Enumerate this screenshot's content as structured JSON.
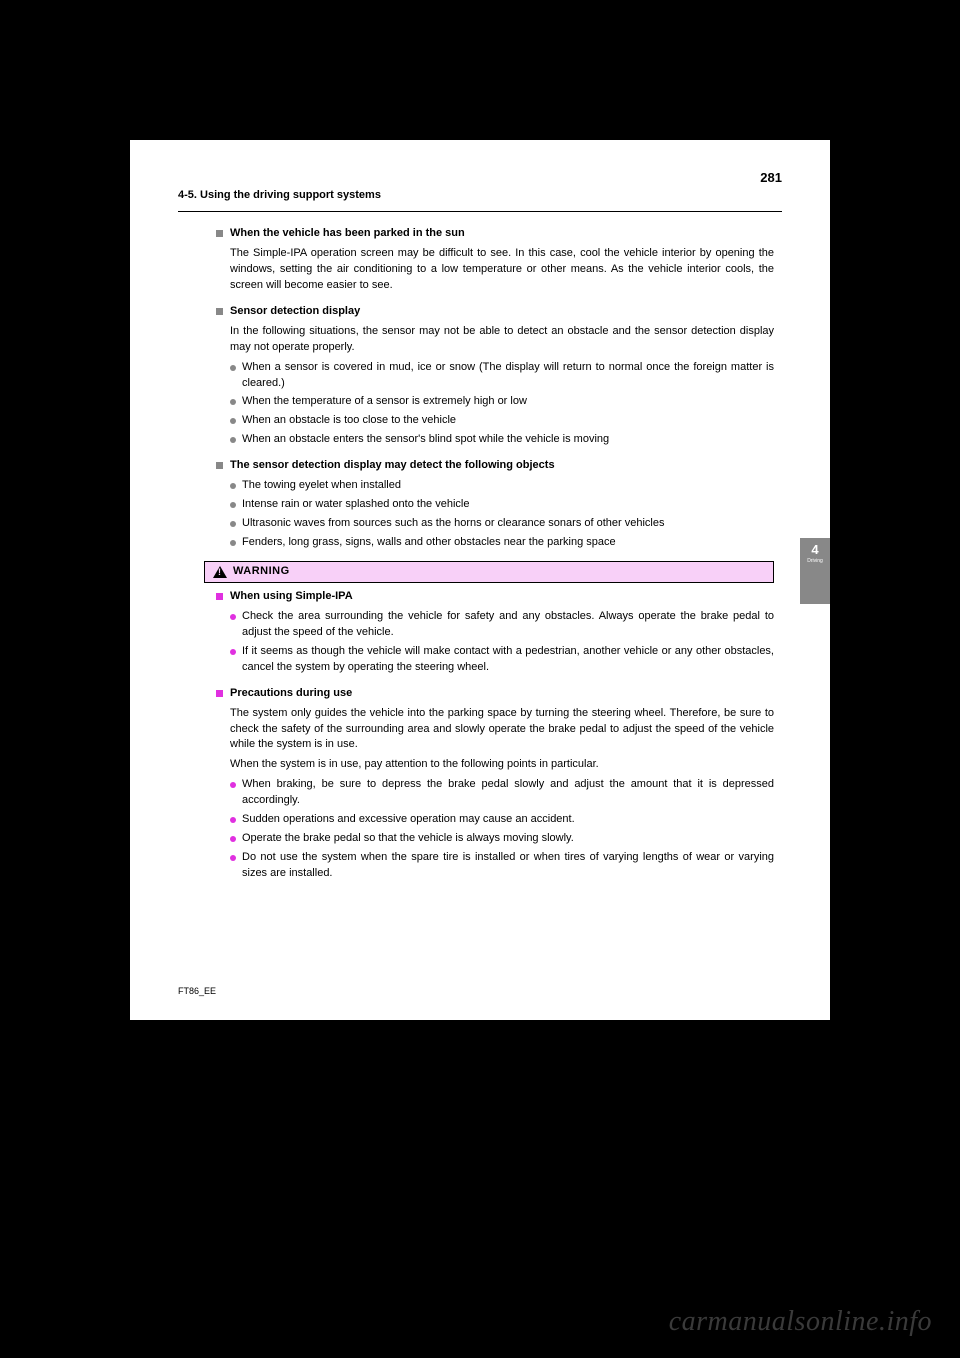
{
  "header": {
    "page_number": "281",
    "section": "4-5. Using the driving support systems"
  },
  "side_tab": {
    "number": "4",
    "label": "Driving"
  },
  "sections": [
    {
      "type": "square",
      "title": "When the vehicle has been parked in the sun",
      "paras": [
        "The Simple-IPA operation screen may be difficult to see. In this case, cool the vehicle interior by opening the windows, setting the air conditioning to a low temperature or other means. As the vehicle interior cools, the screen will become easier to see."
      ]
    },
    {
      "type": "square",
      "title": "Sensor detection display",
      "paras": [
        "In the following situations, the sensor may not be able to  detect an obstacle and the sensor detection display may not operate properly."
      ],
      "bullets_gray": [
        "When a sensor is covered in mud, ice or snow  (The display will return to normal once the foreign matter is cleared.)",
        "When the temperature of a sensor is extremely high or low",
        "When an obstacle is too close to the vehicle",
        "When an obstacle enters the sensor's blind spot while the vehicle is moving"
      ]
    },
    {
      "type": "square",
      "title": "The sensor detection display may detect the following objects",
      "bullets_gray": [
        "The towing eyelet when installed",
        "Intense rain or water splashed onto the vehicle",
        "Ultrasonic waves from sources such as the horns or clearance sonars of other vehicles",
        "Fenders, long grass, signs, walls and other obstacles near the parking space"
      ]
    }
  ],
  "warning": {
    "label": "WARNING",
    "items": [
      {
        "type": "square",
        "title": "When using Simple-IPA",
        "bullets": [
          "Check the area surrounding the vehicle for safety and any obstacles. Always operate the brake pedal to adjust the speed of the vehicle.",
          "If it seems as though the vehicle will make contact with a pedestrian, another vehicle or any other obstacles, cancel the system by operating the steering wheel."
        ]
      },
      {
        "type": "square",
        "title": "Precautions during use",
        "paras": [
          "The system only guides the vehicle into the parking space by turning the steering wheel. Therefore, be sure to check the safety of the surrounding area and slowly operate the brake pedal to adjust the speed of the vehicle while the system is in use.",
          "When the system is in use, pay attention to the following points in particular."
        ],
        "bullets": [
          "When braking, be sure to depress the brake pedal slowly and adjust the amount that it is depressed accordingly.",
          "Sudden operations and excessive operation may cause an accident.",
          "Operate the brake pedal so that the vehicle is always moving slowly.",
          "Do not use the system when the spare tire is installed or when tires of varying lengths of wear or varying sizes are installed."
        ]
      }
    ]
  },
  "footer_code": "FT86_EE",
  "watermark": "carmanualsonline.info"
}
